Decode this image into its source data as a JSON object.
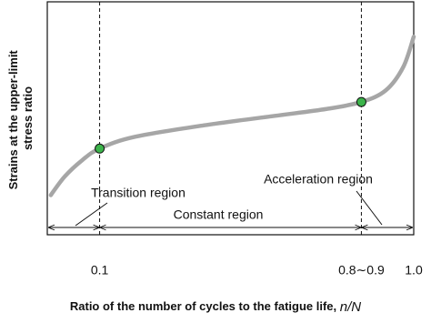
{
  "chart_data": {
    "type": "line",
    "ylabel": [
      "Strains at the upper-limit",
      "stress ratio"
    ],
    "xlabel": "Ratio of the number of cycles to the fatigue life,",
    "xlabel_variable": "n/N",
    "xlim": [
      -0.05,
      1.0
    ],
    "ylim": [
      0,
      1
    ],
    "xticks": [
      0.1,
      {
        "value": 0.85,
        "label": "0.8∼0.9"
      },
      {
        "value": 1.0,
        "label": "1.0"
      }
    ],
    "series": [
      {
        "color": "#a6a6a6",
        "x": [
          -0.04,
          0.0,
          0.05,
          0.1,
          0.2,
          0.4,
          0.6,
          0.75,
          0.85,
          0.92,
          0.97,
          1.0
        ],
        "values": [
          0.17,
          0.25,
          0.32,
          0.37,
          0.42,
          0.47,
          0.51,
          0.54,
          0.57,
          0.62,
          0.72,
          0.85
        ]
      },
      {
        "color": "#3cb44b",
        "marker": "circle",
        "x": [
          0.1,
          0.85
        ],
        "values": [
          0.37,
          0.57
        ]
      }
    ],
    "regions": [
      "Transition region",
      "Constant region",
      "Acceleration region"
    ]
  }
}
